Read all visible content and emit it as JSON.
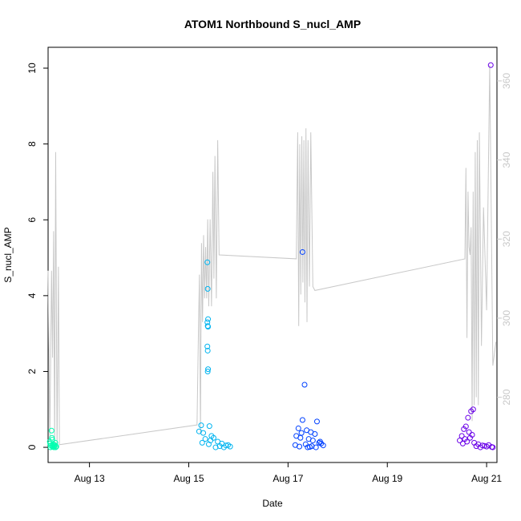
{
  "chart_data": {
    "type": "scatter",
    "title": "ATOM1 Northbound S_nucl_AMP",
    "xlabel": "Date",
    "ylabel": "S_nucl_AMP",
    "xlim": [
      "2023-08-12 04:00",
      "2023-08-21 05:00"
    ],
    "ylim": [
      -0.4,
      10.55
    ],
    "x_ticks": [
      {
        "date": "2023-08-13 00:00",
        "label": "Aug 13"
      },
      {
        "date": "2023-08-15 00:00",
        "label": "Aug 15"
      },
      {
        "date": "2023-08-17 00:00",
        "label": "Aug 17"
      },
      {
        "date": "2023-08-19 00:00",
        "label": "Aug 19"
      },
      {
        "date": "2023-08-21 00:00",
        "label": "Aug 21"
      }
    ],
    "y_ticks": [
      0,
      2,
      4,
      6,
      8,
      10
    ],
    "y2lim": [
      263.5,
      368.5
    ],
    "y2_ticks": [
      280,
      300,
      320,
      340,
      360
    ],
    "colors": {
      "series_line": "#c8c8c8",
      "right_axis": "#c8c8c8",
      "clusters": [
        "#00ffb0",
        "#00b4f0",
        "#0040ff",
        "#6a00e8"
      ]
    },
    "grid": false,
    "legend": "none",
    "series": [
      {
        "kind": "points",
        "color": "#00ffb0",
        "points": [
          [
            "2023-08-12 05:40",
            0.44
          ],
          [
            "2023-08-12 05:00",
            0.1
          ],
          [
            "2023-08-12 05:20",
            0.05
          ],
          [
            "2023-08-12 06:00",
            0.2
          ],
          [
            "2023-08-12 06:30",
            0.08
          ],
          [
            "2023-08-12 07:00",
            0.03
          ],
          [
            "2023-08-12 07:30",
            0.12
          ],
          [
            "2023-08-12 08:00",
            0.02
          ],
          [
            "2023-08-12 05:10",
            0.0
          ],
          [
            "2023-08-12 06:10",
            0.01
          ],
          [
            "2023-08-12 06:50",
            0.0
          ],
          [
            "2023-08-12 07:10",
            0.06
          ],
          [
            "2023-08-12 04:50",
            0.15
          ],
          [
            "2023-08-12 05:50",
            0.25
          ],
          [
            "2023-08-12 07:40",
            0.0
          ],
          [
            "2023-08-12 06:20",
            0.04
          ]
        ]
      },
      {
        "kind": "points",
        "color": "#00b4f0",
        "points": [
          [
            "2023-08-15 09:00",
            4.88
          ],
          [
            "2023-08-15 09:10",
            4.18
          ],
          [
            "2023-08-15 09:20",
            3.38
          ],
          [
            "2023-08-15 09:00",
            3.3
          ],
          [
            "2023-08-15 09:10",
            3.2
          ],
          [
            "2023-08-15 09:20",
            3.18
          ],
          [
            "2023-08-15 09:00",
            2.66
          ],
          [
            "2023-08-15 09:10",
            2.55
          ],
          [
            "2023-08-15 09:20",
            2.06
          ],
          [
            "2023-08-15 09:10",
            2.0
          ],
          [
            "2023-08-15 06:00",
            0.58
          ],
          [
            "2023-08-15 10:00",
            0.56
          ],
          [
            "2023-08-15 05:00",
            0.42
          ],
          [
            "2023-08-15 07:00",
            0.38
          ],
          [
            "2023-08-15 11:00",
            0.3
          ],
          [
            "2023-08-15 08:00",
            0.22
          ],
          [
            "2023-08-15 12:00",
            0.25
          ],
          [
            "2023-08-15 14:00",
            0.15
          ],
          [
            "2023-08-15 16:00",
            0.1
          ],
          [
            "2023-08-15 18:00",
            0.05
          ],
          [
            "2023-08-15 20:00",
            0.02
          ],
          [
            "2023-08-15 06:30",
            0.12
          ],
          [
            "2023-08-15 09:40",
            0.08
          ],
          [
            "2023-08-15 13:00",
            0.0
          ],
          [
            "2023-08-15 15:00",
            0.03
          ],
          [
            "2023-08-15 17:00",
            0.0
          ],
          [
            "2023-08-15 19:00",
            0.06
          ],
          [
            "2023-08-15 10:30",
            0.18
          ]
        ]
      },
      {
        "kind": "points",
        "color": "#0040ff",
        "points": [
          [
            "2023-08-17 07:00",
            5.15
          ],
          [
            "2023-08-17 08:00",
            1.65
          ],
          [
            "2023-08-17 07:00",
            0.72
          ],
          [
            "2023-08-17 14:00",
            0.68
          ],
          [
            "2023-08-17 05:00",
            0.5
          ],
          [
            "2023-08-17 09:00",
            0.45
          ],
          [
            "2023-08-17 11:00",
            0.4
          ],
          [
            "2023-08-17 13:00",
            0.35
          ],
          [
            "2023-08-17 04:00",
            0.3
          ],
          [
            "2023-08-17 06:00",
            0.25
          ],
          [
            "2023-08-17 10:00",
            0.22
          ],
          [
            "2023-08-17 12:00",
            0.18
          ],
          [
            "2023-08-17 15:00",
            0.12
          ],
          [
            "2023-08-17 16:00",
            0.1
          ],
          [
            "2023-08-17 17:00",
            0.05
          ],
          [
            "2023-08-17 08:30",
            0.08
          ],
          [
            "2023-08-17 05:30",
            0.02
          ],
          [
            "2023-08-17 09:30",
            0.0
          ],
          [
            "2023-08-17 11:30",
            0.03
          ],
          [
            "2023-08-17 13:30",
            0.0
          ],
          [
            "2023-08-17 03:30",
            0.06
          ],
          [
            "2023-08-17 15:30",
            0.15
          ],
          [
            "2023-08-17 06:30",
            0.38
          ],
          [
            "2023-08-17 10:30",
            0.01
          ]
        ]
      },
      {
        "kind": "points",
        "color": "#6a00e8",
        "points": [
          [
            "2023-08-21 02:00",
            10.08
          ],
          [
            "2023-08-20 17:30",
            1.0
          ],
          [
            "2023-08-20 16:30",
            0.95
          ],
          [
            "2023-08-20 15:00",
            0.78
          ],
          [
            "2023-08-20 14:00",
            0.55
          ],
          [
            "2023-08-20 13:00",
            0.48
          ],
          [
            "2023-08-20 15:30",
            0.4
          ],
          [
            "2023-08-20 12:00",
            0.3
          ],
          [
            "2023-08-20 16:00",
            0.25
          ],
          [
            "2023-08-20 11:00",
            0.18
          ],
          [
            "2023-08-20 18:00",
            0.12
          ],
          [
            "2023-08-20 20:00",
            0.08
          ],
          [
            "2023-08-20 22:00",
            0.05
          ],
          [
            "2023-08-21 00:00",
            0.02
          ],
          [
            "2023-08-21 01:00",
            0.06
          ],
          [
            "2023-08-21 03:00",
            0.0
          ],
          [
            "2023-08-20 12:30",
            0.1
          ],
          [
            "2023-08-20 13:30",
            0.22
          ],
          [
            "2023-08-20 19:00",
            0.03
          ],
          [
            "2023-08-20 21:00",
            0.0
          ],
          [
            "2023-08-20 23:00",
            0.04
          ],
          [
            "2023-08-21 02:30",
            0.01
          ],
          [
            "2023-08-20 14:30",
            0.15
          ],
          [
            "2023-08-20 17:00",
            0.33
          ]
        ]
      },
      {
        "kind": "line",
        "axis": "right",
        "color": "#c8c8c8",
        "points": [
          [
            "2023-08-12 04:00",
            312
          ],
          [
            "2023-08-12 04:50",
            269
          ],
          [
            "2023-08-12 05:40",
            312
          ],
          [
            "2023-08-12 06:10",
            290
          ],
          [
            "2023-08-12 06:40",
            322
          ],
          [
            "2023-08-12 07:10",
            268
          ],
          [
            "2023-08-12 07:40",
            342
          ],
          [
            "2023-08-12 08:20",
            267
          ],
          [
            "2023-08-12 09:00",
            313
          ],
          [
            "2023-08-12 09:30",
            268
          ],
          [
            "2023-08-15 04:00",
            273
          ],
          [
            "2023-08-15 04:40",
            296
          ],
          [
            "2023-08-15 05:10",
            311
          ],
          [
            "2023-08-15 05:40",
            271
          ],
          [
            "2023-08-15 06:10",
            319
          ],
          [
            "2023-08-15 06:40",
            299
          ],
          [
            "2023-08-15 07:10",
            321
          ],
          [
            "2023-08-15 07:40",
            305
          ],
          [
            "2023-08-15 08:10",
            318
          ],
          [
            "2023-08-15 08:40",
            305
          ],
          [
            "2023-08-15 09:10",
            325
          ],
          [
            "2023-08-15 09:40",
            303
          ],
          [
            "2023-08-15 10:20",
            325
          ],
          [
            "2023-08-15 11:00",
            303
          ],
          [
            "2023-08-15 11:40",
            337
          ],
          [
            "2023-08-15 12:10",
            310
          ],
          [
            "2023-08-15 12:40",
            341
          ],
          [
            "2023-08-15 13:20",
            305
          ],
          [
            "2023-08-15 14:00",
            345
          ],
          [
            "2023-08-15 14:40",
            316
          ],
          [
            "2023-08-17 04:00",
            315
          ],
          [
            "2023-08-17 04:40",
            347
          ],
          [
            "2023-08-17 05:10",
            298
          ],
          [
            "2023-08-17 05:40",
            344
          ],
          [
            "2023-08-17 06:10",
            306
          ],
          [
            "2023-08-17 06:40",
            346
          ],
          [
            "2023-08-17 07:10",
            309
          ],
          [
            "2023-08-17 07:40",
            345
          ],
          [
            "2023-08-17 08:10",
            304
          ],
          [
            "2023-08-17 08:40",
            348
          ],
          [
            "2023-08-17 09:10",
            299
          ],
          [
            "2023-08-17 09:40",
            345
          ],
          [
            "2023-08-17 10:20",
            308
          ],
          [
            "2023-08-17 11:00",
            347
          ],
          [
            "2023-08-17 12:00",
            308
          ],
          [
            "2023-08-17 13:00",
            307
          ],
          [
            "2023-08-20 13:30",
            315
          ],
          [
            "2023-08-20 14:00",
            338
          ],
          [
            "2023-08-20 14:30",
            295
          ],
          [
            "2023-08-20 15:00",
            332
          ],
          [
            "2023-08-20 15:30",
            318
          ],
          [
            "2023-08-20 16:00",
            316
          ],
          [
            "2023-08-20 16:30",
            323
          ],
          [
            "2023-08-20 17:00",
            274
          ],
          [
            "2023-08-20 17:30",
            332
          ],
          [
            "2023-08-20 18:00",
            278
          ],
          [
            "2023-08-20 18:30",
            342
          ],
          [
            "2023-08-20 19:00",
            280
          ],
          [
            "2023-08-20 19:30",
            345
          ],
          [
            "2023-08-20 20:00",
            278
          ],
          [
            "2023-08-20 20:30",
            347
          ],
          [
            "2023-08-20 21:30",
            293
          ],
          [
            "2023-08-20 22:30",
            328
          ],
          [
            "2023-08-21 00:00",
            302
          ],
          [
            "2023-08-21 01:30",
            364
          ],
          [
            "2023-08-21 03:00",
            288
          ],
          [
            "2023-08-21 04:30",
            294
          ]
        ]
      }
    ]
  }
}
